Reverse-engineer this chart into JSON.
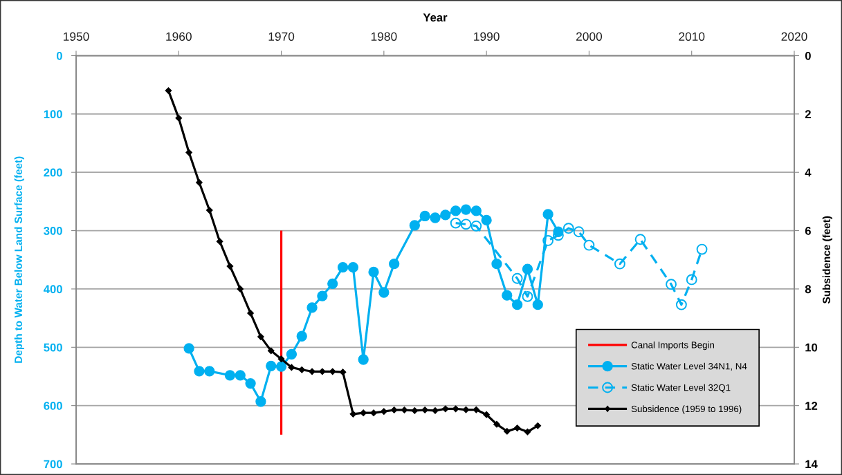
{
  "chart_data": {
    "type": "line",
    "xlabel": "Year",
    "ylabel": "Depth to Water Below Land Surface (feet)",
    "y2label": "Subsidence (feet)",
    "xlim": [
      1950,
      2020
    ],
    "xticks": [
      1950,
      1960,
      1970,
      1980,
      1990,
      2000,
      2010,
      2020
    ],
    "ylim": [
      700,
      0
    ],
    "yticks": [
      0,
      100,
      200,
      300,
      400,
      500,
      600,
      700
    ],
    "y2lim": [
      14,
      0
    ],
    "y2ticks": [
      0,
      2,
      4,
      6,
      8,
      10,
      12,
      14
    ],
    "grid": "y",
    "legend": "bottom right",
    "series": [
      {
        "name": "Canal Imports Begin",
        "color": "#ff0000",
        "marker": "none",
        "line_style": "solid",
        "x": [
          1970,
          1970
        ],
        "values": [
          300,
          650
        ]
      },
      {
        "name": "Static Water Level 34N1, N4",
        "color": "#00b0f0",
        "marker": "circle",
        "line_style": "solid",
        "x": [
          1961,
          1962,
          1963,
          1965,
          1966,
          1967,
          1968,
          1969,
          1970,
          1971,
          1972,
          1973,
          1974,
          1975,
          1976,
          1977,
          1978,
          1979,
          1980,
          1981,
          1983,
          1984,
          1985,
          1986,
          1987,
          1988,
          1989,
          1990,
          1991,
          1992,
          1993,
          1994,
          1995,
          1996,
          1997
        ],
        "values": [
          502,
          541,
          541,
          548,
          548,
          562,
          593,
          532,
          533,
          512,
          481,
          432,
          412,
          391,
          363,
          363,
          521,
          371,
          406,
          357,
          291,
          275,
          278,
          273,
          266,
          264,
          266,
          282,
          357,
          411,
          427,
          366,
          427,
          272,
          302
        ]
      },
      {
        "name": "Static Water Level 32Q1",
        "color": "#00b0f0",
        "marker": "circle",
        "line_style": "dashed",
        "x": [
          1987,
          1988,
          1989,
          1993,
          1994,
          1996,
          1997,
          1998,
          1999,
          2000,
          2003,
          2005,
          2008,
          2009,
          2010,
          2011
        ],
        "values": [
          287,
          289,
          292,
          382,
          413,
          317,
          308,
          296,
          302,
          325,
          357,
          315,
          392,
          427,
          384,
          332
        ]
      },
      {
        "name": "Subsidence (1959 to 1996)",
        "axis": "y2",
        "color": "#000000",
        "marker": "diamond",
        "line_style": "solid",
        "x": [
          1959,
          1960,
          1961,
          1962,
          1963,
          1964,
          1965,
          1966,
          1967,
          1968,
          1969,
          1970,
          1971,
          1972,
          1973,
          1974,
          1975,
          1976,
          1977,
          1978,
          1979,
          1980,
          1981,
          1982,
          1983,
          1984,
          1985,
          1986,
          1987,
          1988,
          1989,
          1990,
          1991,
          1992,
          1993,
          1994,
          1995
        ],
        "values": [
          1.2,
          2.14,
          3.32,
          4.35,
          5.3,
          6.37,
          7.22,
          8.0,
          8.83,
          9.64,
          10.12,
          10.4,
          10.69,
          10.77,
          10.83,
          10.83,
          10.83,
          10.85,
          12.29,
          12.25,
          12.25,
          12.2,
          12.15,
          12.15,
          12.17,
          12.15,
          12.17,
          12.11,
          12.11,
          12.14,
          12.14,
          12.31,
          12.64,
          12.88,
          12.77,
          12.9,
          12.69
        ]
      }
    ]
  }
}
